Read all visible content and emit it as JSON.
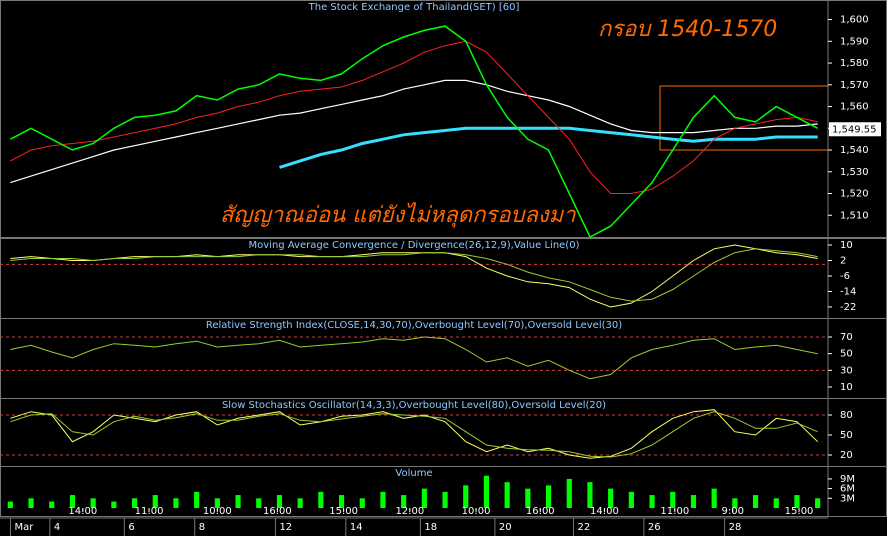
{
  "chart_data": [
    {
      "type": "line",
      "title": "The Stock Exchange of Thailand(SET) [60]",
      "annotations": [
        "กรอบ 1540-1570",
        "สัญญาณอ่อน แต่ยังไม่หลุดกรอบลงมา"
      ],
      "ylim": [
        1500,
        1609
      ],
      "yticks": [
        {
          "value": 1510,
          "label": "1,510"
        },
        {
          "value": 1520,
          "label": "1,520"
        },
        {
          "value": 1530,
          "label": "1,530"
        },
        {
          "value": 1540,
          "label": "1,540"
        },
        {
          "value": 1550,
          "label": "1,550"
        },
        {
          "value": 1560,
          "label": "1,560"
        },
        {
          "value": 1570,
          "label": "1,570"
        },
        {
          "value": 1580,
          "label": "1,580"
        },
        {
          "value": 1590,
          "label": "1,590"
        },
        {
          "value": 1600,
          "label": "1,600"
        }
      ],
      "last_value": 1549.55,
      "last_value_label": "1,549.55",
      "series": [
        {
          "color": "#ffffff",
          "width": 1.2,
          "values": [
            1525,
            1528,
            1531,
            1534,
            1537,
            1540,
            1542,
            1544,
            1546,
            1548,
            1550,
            1552,
            1554,
            1556,
            1557,
            1559,
            1561,
            1563,
            1565,
            1568,
            1570,
            1572,
            1572,
            1570,
            1567,
            1565,
            1563,
            1560,
            1556,
            1552,
            1549,
            1548,
            1548,
            1548,
            1549,
            1550,
            1550,
            1551,
            1551,
            1552
          ]
        },
        {
          "color": "#33e0ff",
          "width": 3,
          "values": [
            null,
            null,
            null,
            null,
            null,
            null,
            null,
            null,
            null,
            null,
            null,
            null,
            null,
            1532,
            1535,
            1538,
            1540,
            1543,
            1545,
            1547,
            1548,
            1549,
            1550,
            1550,
            1550,
            1550,
            1550,
            1550,
            1549,
            1548,
            1547,
            1546,
            1545,
            1544,
            1545,
            1545,
            1545,
            1546,
            1546,
            1546
          ]
        },
        {
          "color": "#ff2020",
          "width": 1,
          "values": [
            1535,
            1540,
            1542,
            1543,
            1544,
            1546,
            1548,
            1550,
            1552,
            1555,
            1557,
            1560,
            1562,
            1565,
            1567,
            1568,
            1569,
            1572,
            1576,
            1580,
            1585,
            1588,
            1590,
            1585,
            1575,
            1565,
            1555,
            1545,
            1530,
            1520,
            1520,
            1522,
            1528,
            1535,
            1545,
            1550,
            1552,
            1554,
            1555,
            1553
          ]
        },
        {
          "color": "#00ff00",
          "width": 1.5,
          "values": [
            1545,
            1550,
            1545,
            1540,
            1543,
            1550,
            1555,
            1556,
            1558,
            1565,
            1563,
            1568,
            1570,
            1575,
            1573,
            1572,
            1575,
            1582,
            1588,
            1592,
            1595,
            1597,
            1590,
            1570,
            1555,
            1545,
            1540,
            1520,
            1500,
            1505,
            1515,
            1525,
            1540,
            1555,
            1565,
            1555,
            1553,
            1560,
            1555,
            1550
          ]
        }
      ]
    },
    {
      "type": "line",
      "title": "Moving Average Convergence / Divergence(26,12,9),Value Line(0)",
      "ylim": [
        -27.7,
        13.6
      ],
      "yticks": [
        -22,
        -14,
        -6,
        2,
        10
      ],
      "reference_lines": [
        0
      ],
      "series": [
        {
          "color": "#ffff66",
          "width": 1,
          "values": [
            3,
            4,
            3,
            2,
            2,
            3,
            4,
            4,
            4,
            5,
            4,
            5,
            5,
            5,
            4,
            4,
            4,
            5,
            6,
            6,
            6,
            6,
            4,
            -2,
            -6,
            -9,
            -10,
            -12,
            -18,
            -22,
            -20,
            -14,
            -6,
            2,
            8,
            10,
            8,
            6,
            5,
            3
          ]
        },
        {
          "color": "#9acd32",
          "width": 1,
          "values": [
            2,
            3,
            3,
            3,
            2,
            3,
            3,
            4,
            4,
            4,
            4,
            4,
            5,
            5,
            5,
            4,
            4,
            4,
            5,
            5,
            6,
            6,
            5,
            3,
            0,
            -4,
            -7,
            -9,
            -13,
            -17,
            -19,
            -18,
            -13,
            -6,
            1,
            6,
            8,
            7,
            6,
            4
          ]
        }
      ]
    },
    {
      "type": "line",
      "title": "Relative Strength Index(CLOSE,14,30,70),Overbought Level(70),Oversold Level(30)",
      "ylim": [
        -3.2,
        92.8
      ],
      "yticks": [
        10,
        30,
        50,
        70
      ],
      "reference_lines": [
        70,
        30
      ],
      "series": [
        {
          "color": "#9acd32",
          "width": 1,
          "values": [
            55,
            60,
            52,
            45,
            55,
            62,
            60,
            58,
            62,
            65,
            58,
            60,
            62,
            66,
            58,
            60,
            62,
            64,
            68,
            66,
            70,
            68,
            55,
            40,
            45,
            35,
            42,
            30,
            20,
            25,
            45,
            55,
            60,
            66,
            68,
            55,
            58,
            60,
            55,
            50
          ]
        }
      ]
    },
    {
      "type": "line",
      "title": "Slow Stochastics Oscillator(14,3,3),Overbought Level(80),Oversold Level(20)",
      "ylim": [
        3.5,
        105.5
      ],
      "yticks": [
        20,
        50,
        80
      ],
      "reference_lines": [
        80,
        20
      ],
      "series": [
        {
          "color": "#ffff66",
          "width": 1,
          "values": [
            75,
            85,
            80,
            40,
            55,
            80,
            75,
            70,
            80,
            85,
            65,
            75,
            80,
            85,
            65,
            70,
            78,
            80,
            85,
            75,
            80,
            70,
            40,
            25,
            35,
            25,
            30,
            20,
            15,
            18,
            30,
            55,
            75,
            85,
            88,
            55,
            50,
            75,
            70,
            40
          ]
        },
        {
          "color": "#9acd32",
          "width": 1,
          "values": [
            70,
            80,
            82,
            55,
            50,
            70,
            78,
            72,
            76,
            82,
            72,
            72,
            78,
            82,
            72,
            70,
            74,
            78,
            82,
            80,
            78,
            75,
            55,
            35,
            30,
            28,
            27,
            25,
            18,
            17,
            22,
            35,
            55,
            75,
            85,
            75,
            60,
            60,
            68,
            55
          ]
        }
      ]
    },
    {
      "type": "bar",
      "title": "Volume",
      "color": "#00ff00",
      "ylim": [
        0,
        13
      ],
      "yticks": [
        {
          "value": 3,
          "label": "3M"
        },
        {
          "value": 6,
          "label": "6M"
        },
        {
          "value": 9,
          "label": "9M"
        }
      ],
      "values": [
        2,
        3,
        2,
        4,
        3,
        2,
        3,
        4,
        3,
        5,
        3,
        4,
        3,
        4,
        3,
        5,
        4,
        3,
        5,
        4,
        6,
        5,
        7,
        10,
        8,
        6,
        7,
        9,
        8,
        6,
        5,
        4,
        5,
        4,
        6,
        3,
        4,
        3,
        4,
        3
      ],
      "xlim": [
        0,
        40
      ],
      "xticks": [
        {
          "value": 4,
          "label": "14:00"
        },
        {
          "value": 7.2,
          "label": "11:00"
        },
        {
          "value": 10.5,
          "label": "10:00"
        },
        {
          "value": 13.4,
          "label": "16:00"
        },
        {
          "value": 16.6,
          "label": "15:00"
        },
        {
          "value": 19.8,
          "label": "12:00"
        },
        {
          "value": 23,
          "label": "10:00"
        },
        {
          "value": 26.1,
          "label": "16:00"
        },
        {
          "value": 29.2,
          "label": "14:00"
        },
        {
          "value": 32.6,
          "label": "11:00"
        },
        {
          "value": 35.4,
          "label": "9:00"
        },
        {
          "value": 38.6,
          "label": "15:00"
        }
      ],
      "date_ticks": [
        {
          "value": 0.7,
          "label": "Mar"
        },
        {
          "value": 2.6,
          "label": "4"
        },
        {
          "value": 6.2,
          "label": "6"
        },
        {
          "value": 9.6,
          "label": "8"
        },
        {
          "value": 13.5,
          "label": "12"
        },
        {
          "value": 16.9,
          "label": "14"
        },
        {
          "value": 20.5,
          "label": "18"
        },
        {
          "value": 24.1,
          "label": "20"
        },
        {
          "value": 27.9,
          "label": "22"
        },
        {
          "value": 31.3,
          "label": "26"
        },
        {
          "value": 35.2,
          "label": "28"
        }
      ]
    }
  ]
}
